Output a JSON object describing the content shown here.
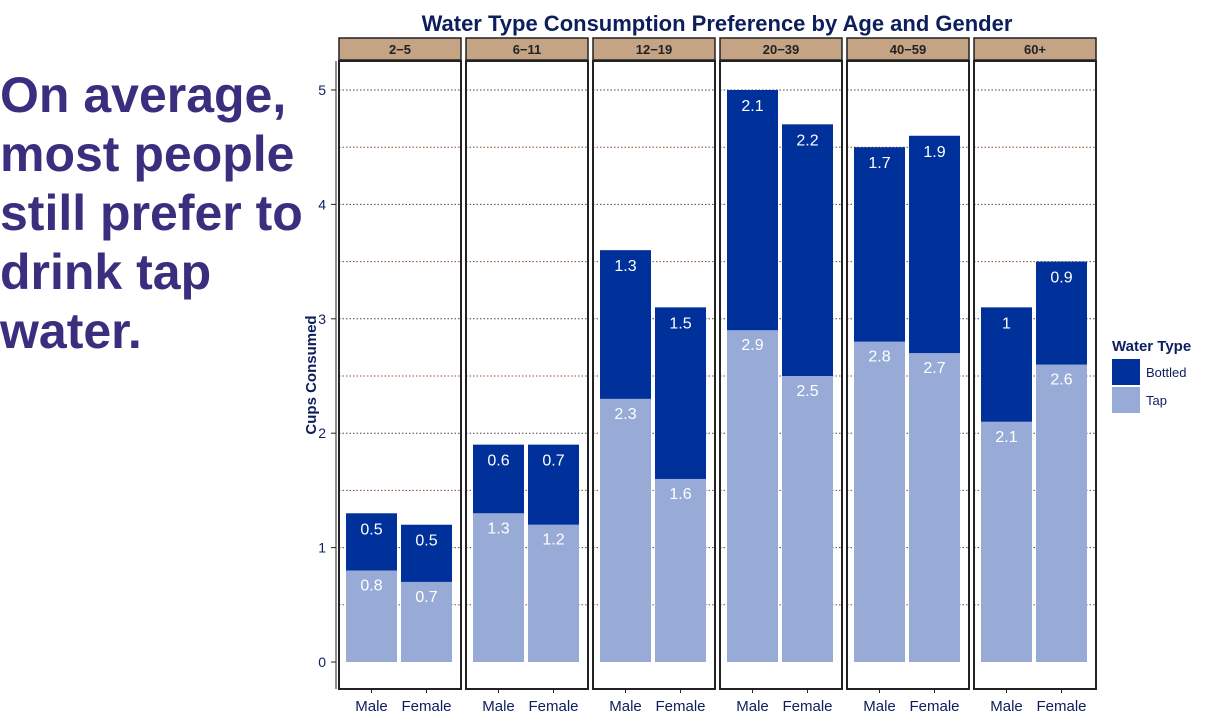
{
  "callout": {
    "lines": [
      "On average,",
      "most people",
      "still prefer to",
      "drink tap",
      "water."
    ]
  },
  "chart_data": {
    "type": "bar",
    "stacked": true,
    "faceted": true,
    "title": "Water Type Consumption Preference by Age and Gender",
    "ylabel": "Cups Consumed",
    "xlabel": "",
    "ylim": [
      0,
      5.25
    ],
    "yticks": [
      0,
      1,
      2,
      3,
      4,
      5
    ],
    "grid": true,
    "legend": {
      "title": "Water Type",
      "position": "right",
      "entries": [
        {
          "label": "Bottled",
          "color": "#00309a"
        },
        {
          "label": "Tap",
          "color": "#98abd6"
        }
      ]
    },
    "colors": {
      "bottled": "#00309a",
      "tap": "#98abd6",
      "strip": "#c4a484",
      "title": "#0c1e5b"
    },
    "categories": [
      "Male",
      "Female"
    ],
    "panels": [
      {
        "label": "2−5",
        "tap": [
          0.8,
          0.7
        ],
        "bottled": [
          0.5,
          0.5
        ],
        "tap_labels": [
          "0.8",
          "0.7"
        ],
        "bottled_labels": [
          "0.5",
          "0.5"
        ]
      },
      {
        "label": "6−11",
        "tap": [
          1.3,
          1.2
        ],
        "bottled": [
          0.6,
          0.7
        ],
        "tap_labels": [
          "1.3",
          "1.2"
        ],
        "bottled_labels": [
          "0.6",
          "0.7"
        ]
      },
      {
        "label": "12−19",
        "tap": [
          2.3,
          1.6
        ],
        "bottled": [
          1.3,
          1.5
        ],
        "tap_labels": [
          "2.3",
          "1.6"
        ],
        "bottled_labels": [
          "1.3",
          "1.5"
        ]
      },
      {
        "label": "20−39",
        "tap": [
          2.9,
          2.5
        ],
        "bottled": [
          2.1,
          2.2
        ],
        "tap_labels": [
          "2.9",
          "2.5"
        ],
        "bottled_labels": [
          "2.1",
          "2.2"
        ]
      },
      {
        "label": "40−59",
        "tap": [
          2.8,
          2.7
        ],
        "bottled": [
          1.7,
          1.9
        ],
        "tap_labels": [
          "2.8",
          "2.7"
        ],
        "bottled_labels": [
          "1.7",
          "1.9"
        ]
      },
      {
        "label": "60+",
        "tap": [
          2.1,
          2.6
        ],
        "bottled": [
          1.0,
          0.9
        ],
        "tap_labels": [
          "2.1",
          "2.6"
        ],
        "bottled_labels": [
          "1",
          "0.9"
        ]
      }
    ]
  }
}
